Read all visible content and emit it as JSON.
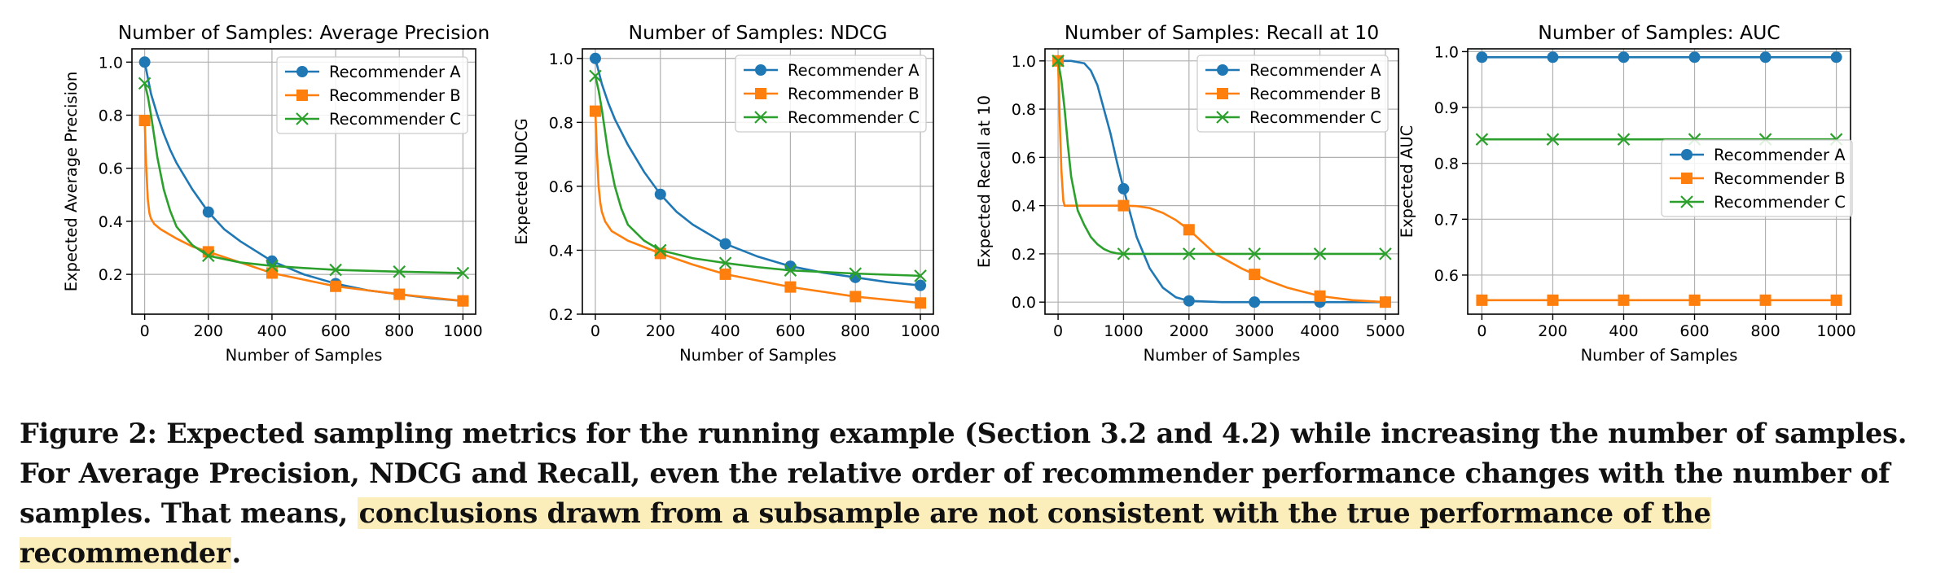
{
  "charts": [
    {
      "id": "ap",
      "title": "Number of Samples: Average Precision",
      "xlabel": "Number of Samples",
      "ylabel": "Expected Average Precision",
      "xlim": [
        -40,
        1040
      ],
      "ylim": [
        0.05,
        1.05
      ],
      "xticks": [
        0,
        200,
        400,
        600,
        800,
        1000
      ],
      "yticks": [
        0.2,
        0.4,
        0.6,
        0.8,
        1.0
      ],
      "ytick_labels": [
        "0.2",
        "0.4",
        "0.6",
        "0.8",
        "1.0"
      ],
      "legend": "top-right",
      "marker_x": [
        0,
        200,
        400,
        600,
        800,
        1000
      ],
      "series": [
        {
          "name": "Recommender A",
          "color": "#1f77b4",
          "marker": "circle",
          "x": [
            0,
            20,
            40,
            60,
            80,
            100,
            150,
            200,
            250,
            300,
            400,
            500,
            600,
            700,
            800,
            900,
            1000
          ],
          "y": [
            1.0,
            0.88,
            0.8,
            0.73,
            0.67,
            0.62,
            0.52,
            0.435,
            0.37,
            0.325,
            0.25,
            0.2,
            0.165,
            0.14,
            0.125,
            0.11,
            0.1
          ]
        },
        {
          "name": "Recommender B",
          "color": "#ff7f0e",
          "marker": "square",
          "x": [
            0,
            5,
            10,
            15,
            20,
            30,
            50,
            100,
            150,
            200,
            300,
            400,
            500,
            600,
            800,
            1000
          ],
          "y": [
            0.78,
            0.6,
            0.48,
            0.43,
            0.41,
            0.39,
            0.37,
            0.335,
            0.305,
            0.285,
            0.245,
            0.205,
            0.18,
            0.155,
            0.125,
            0.1
          ]
        },
        {
          "name": "Recommender C",
          "color": "#2ca02c",
          "marker": "x",
          "x": [
            0,
            10,
            20,
            30,
            40,
            60,
            80,
            100,
            150,
            200,
            300,
            400,
            500,
            600,
            800,
            1000
          ],
          "y": [
            0.92,
            0.87,
            0.8,
            0.72,
            0.64,
            0.52,
            0.44,
            0.38,
            0.31,
            0.27,
            0.245,
            0.232,
            0.224,
            0.217,
            0.21,
            0.205
          ]
        }
      ]
    },
    {
      "id": "ndcg",
      "title": "Number of Samples: NDCG",
      "xlabel": "Number of Samples",
      "ylabel": "Expected NDCG",
      "xlim": [
        -40,
        1040
      ],
      "ylim": [
        0.2,
        1.03
      ],
      "xticks": [
        0,
        200,
        400,
        600,
        800,
        1000
      ],
      "yticks": [
        0.2,
        0.4,
        0.6,
        0.8,
        1.0
      ],
      "ytick_labels": [
        "0.2",
        "0.4",
        "0.6",
        "0.8",
        "1.0"
      ],
      "legend": "top-right",
      "marker_x": [
        0,
        200,
        400,
        600,
        800,
        1000
      ],
      "series": [
        {
          "name": "Recommender A",
          "color": "#1f77b4",
          "marker": "circle",
          "x": [
            0,
            20,
            40,
            60,
            80,
            100,
            150,
            200,
            250,
            300,
            400,
            500,
            600,
            700,
            800,
            900,
            1000
          ],
          "y": [
            1.0,
            0.92,
            0.86,
            0.81,
            0.77,
            0.73,
            0.645,
            0.575,
            0.52,
            0.48,
            0.42,
            0.38,
            0.35,
            0.33,
            0.315,
            0.3,
            0.29
          ]
        },
        {
          "name": "Recommender B",
          "color": "#ff7f0e",
          "marker": "square",
          "x": [
            0,
            5,
            10,
            15,
            20,
            30,
            50,
            100,
            150,
            200,
            300,
            400,
            500,
            600,
            800,
            1000
          ],
          "y": [
            0.835,
            0.7,
            0.6,
            0.55,
            0.52,
            0.49,
            0.46,
            0.43,
            0.41,
            0.39,
            0.355,
            0.325,
            0.305,
            0.285,
            0.255,
            0.235
          ]
        },
        {
          "name": "Recommender C",
          "color": "#2ca02c",
          "marker": "x",
          "x": [
            0,
            10,
            20,
            30,
            40,
            60,
            80,
            100,
            150,
            200,
            300,
            400,
            500,
            600,
            800,
            1000
          ],
          "y": [
            0.945,
            0.9,
            0.84,
            0.77,
            0.7,
            0.6,
            0.53,
            0.48,
            0.43,
            0.4,
            0.375,
            0.36,
            0.347,
            0.337,
            0.327,
            0.32
          ]
        }
      ]
    },
    {
      "id": "recall",
      "title": "Number of Samples: Recall at 10",
      "xlabel": "Number of Samples",
      "ylabel": "Expected Recall at 10",
      "xlim": [
        -200,
        5200
      ],
      "ylim": [
        -0.05,
        1.05
      ],
      "xticks": [
        0,
        1000,
        2000,
        3000,
        4000,
        5000
      ],
      "yticks": [
        0.0,
        0.2,
        0.4,
        0.6,
        0.8,
        1.0
      ],
      "ytick_labels": [
        "0.0",
        "0.2",
        "0.4",
        "0.6",
        "0.8",
        "1.0"
      ],
      "legend": "top-right",
      "marker_x": [
        0,
        1000,
        2000,
        3000,
        4000,
        5000
      ],
      "series": [
        {
          "name": "Recommender A",
          "color": "#1f77b4",
          "marker": "circle",
          "x": [
            0,
            200,
            400,
            500,
            600,
            700,
            800,
            900,
            1000,
            1100,
            1200,
            1400,
            1600,
            1800,
            2000,
            2500,
            3000,
            4000,
            5000
          ],
          "y": [
            1.0,
            1.0,
            0.99,
            0.96,
            0.9,
            0.8,
            0.7,
            0.58,
            0.47,
            0.37,
            0.27,
            0.14,
            0.06,
            0.02,
            0.005,
            0.0,
            0.0,
            0.0,
            0.0
          ]
        },
        {
          "name": "Recommender B",
          "color": "#ff7f0e",
          "marker": "square",
          "x": [
            0,
            20,
            50,
            80,
            100,
            200,
            500,
            1000,
            1200,
            1400,
            1600,
            1800,
            2000,
            2200,
            2400,
            2600,
            2800,
            3000,
            3200,
            3500,
            4000,
            4500,
            5000
          ],
          "y": [
            1.0,
            0.8,
            0.55,
            0.42,
            0.4,
            0.4,
            0.4,
            0.4,
            0.398,
            0.39,
            0.37,
            0.34,
            0.3,
            0.25,
            0.2,
            0.17,
            0.14,
            0.115,
            0.09,
            0.06,
            0.025,
            0.008,
            0.0
          ]
        },
        {
          "name": "Recommender C",
          "color": "#2ca02c",
          "marker": "x",
          "x": [
            0,
            50,
            100,
            150,
            200,
            300,
            400,
            500,
            600,
            700,
            800,
            900,
            1000,
            2000,
            3000,
            4000,
            5000
          ],
          "y": [
            1.0,
            0.92,
            0.8,
            0.65,
            0.52,
            0.38,
            0.32,
            0.27,
            0.24,
            0.22,
            0.208,
            0.202,
            0.2,
            0.2,
            0.2,
            0.2,
            0.2
          ]
        }
      ]
    },
    {
      "id": "auc",
      "title": "Number of Samples: AUC",
      "xlabel": "Number of Samples",
      "ylabel": "Expected AUC",
      "xlim": [
        -40,
        1040
      ],
      "ylim": [
        0.53,
        1.005
      ],
      "xticks": [
        0,
        200,
        400,
        600,
        800,
        1000
      ],
      "yticks": [
        0.6,
        0.7,
        0.8,
        0.9,
        1.0
      ],
      "ytick_labels": [
        "0.6",
        "0.7",
        "0.8",
        "0.9",
        "1.0"
      ],
      "legend": "center-right",
      "marker_x": [
        0,
        200,
        400,
        600,
        800,
        1000
      ],
      "series": [
        {
          "name": "Recommender A",
          "color": "#1f77b4",
          "marker": "circle",
          "x": [
            0,
            1000
          ],
          "y": [
            0.99,
            0.99
          ]
        },
        {
          "name": "Recommender B",
          "color": "#ff7f0e",
          "marker": "square",
          "x": [
            0,
            1000
          ],
          "y": [
            0.555,
            0.555
          ]
        },
        {
          "name": "Recommender C",
          "color": "#2ca02c",
          "marker": "x",
          "x": [
            0,
            1000
          ],
          "y": [
            0.843,
            0.843
          ]
        }
      ]
    }
  ],
  "caption": {
    "lead": "Figure 2: Expected sampling metrics for the running example (Section 3.2 and 4.2) while increasing the number of samples. For Average Precision, NDCG and Recall, even the relative order of recommender performance changes with the number of samples. That means, ",
    "highlight": "conclusions drawn from a subsample are not consistent with the true performance of the recommender",
    "tail": "."
  },
  "colors": {
    "highlight": "#fbeebb"
  }
}
